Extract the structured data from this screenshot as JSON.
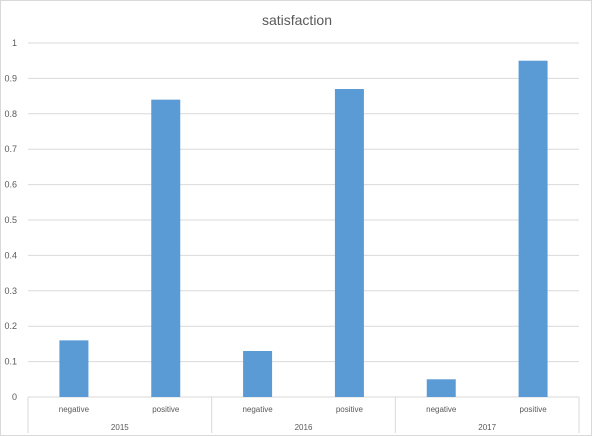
{
  "chart_data": {
    "type": "bar",
    "title": "satisfaction",
    "xlabel": "",
    "ylabel": "",
    "ylim": [
      0,
      1
    ],
    "yticks": [
      "0",
      "0.1",
      "0.2",
      "0.3",
      "0.4",
      "0.5",
      "0.6",
      "0.7",
      "0.8",
      "0.9",
      "1"
    ],
    "groups": [
      "2015",
      "2016",
      "2017"
    ],
    "categories": [
      "negative",
      "positive",
      "negative",
      "positive",
      "negative",
      "positive"
    ],
    "values": [
      0.16,
      0.84,
      0.13,
      0.87,
      0.05,
      0.95
    ],
    "grid": true,
    "legend": "none",
    "bar_color": "#5b9bd5"
  }
}
